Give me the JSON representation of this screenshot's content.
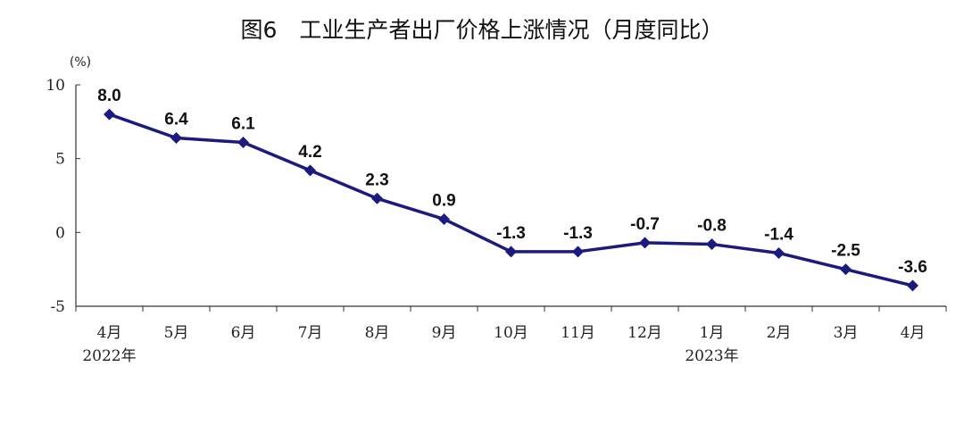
{
  "chart_data": {
    "type": "line",
    "title": "图6　工业生产者出厂价格上涨情况（月度同比）",
    "unit": "(%)",
    "categories": [
      "4月",
      "5月",
      "6月",
      "7月",
      "8月",
      "9月",
      "10月",
      "11月",
      "12月",
      "1月",
      "2月",
      "3月",
      "4月"
    ],
    "year_labels": [
      {
        "index": 0,
        "text": "2022年"
      },
      {
        "index": 9,
        "text": "2023年"
      }
    ],
    "series": [
      {
        "values": [
          8.0,
          6.4,
          6.1,
          4.2,
          2.3,
          0.9,
          -1.3,
          -1.3,
          -0.7,
          -0.8,
          -1.4,
          -2.5,
          -3.6
        ],
        "labels": [
          "8.0",
          "6.4",
          "6.1",
          "4.2",
          "2.3",
          "0.9",
          "-1.3",
          "-1.3",
          "-0.7",
          "-0.8",
          "-1.4",
          "-2.5",
          "-3.6"
        ],
        "color": "#1a1a80"
      }
    ],
    "ylim": [
      -5,
      10
    ],
    "yticks": [
      10,
      5,
      0,
      -5
    ],
    "ytick_labels": [
      "10",
      "5",
      "0",
      "-5"
    ],
    "grid": false,
    "legend": "none"
  }
}
